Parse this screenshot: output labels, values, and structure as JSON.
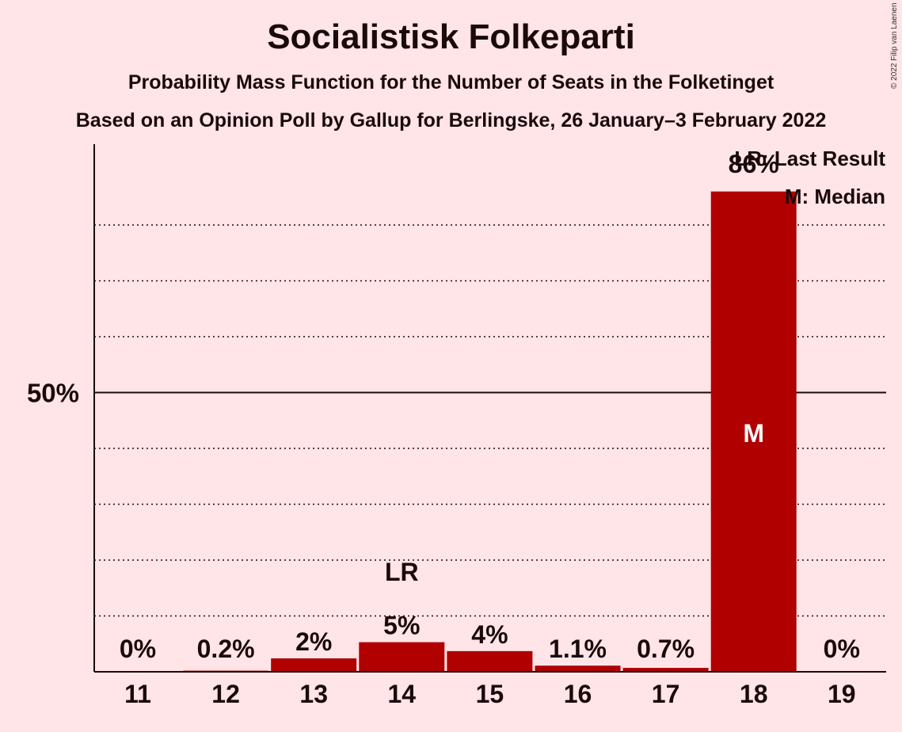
{
  "title": "Socialistisk Folkeparti",
  "subtitle": "Probability Mass Function for the Number of Seats in the Folketinget",
  "subtitle2": "Based on an Opinion Poll by Gallup for Berlingske, 26 January–3 February 2022",
  "copyright": "© 2022 Filip van Laenen",
  "legend": {
    "last_result": "LR: Last Result",
    "median": "M: Median"
  },
  "chart_data": {
    "type": "bar",
    "categories": [
      "11",
      "12",
      "13",
      "14",
      "15",
      "16",
      "17",
      "18",
      "19"
    ],
    "values": [
      0,
      0.2,
      2.4,
      5.3,
      3.7,
      1.1,
      0.7,
      86,
      0
    ],
    "value_labels": [
      "0%",
      "0.2%",
      "2%",
      "5%",
      "4%",
      "1.1%",
      "0.7%",
      "86%",
      "0%"
    ],
    "ylim": [
      0,
      94
    ],
    "y_tick_label": "50%",
    "y_tick_value": 50,
    "dotted_gridlines": [
      10,
      20,
      30,
      40,
      60,
      70,
      80
    ],
    "last_result_category": "14",
    "last_result_marker": "LR",
    "median_category": "18",
    "median_marker": "M",
    "bar_color": "#B00000",
    "background_color": "#FFE4E8"
  }
}
